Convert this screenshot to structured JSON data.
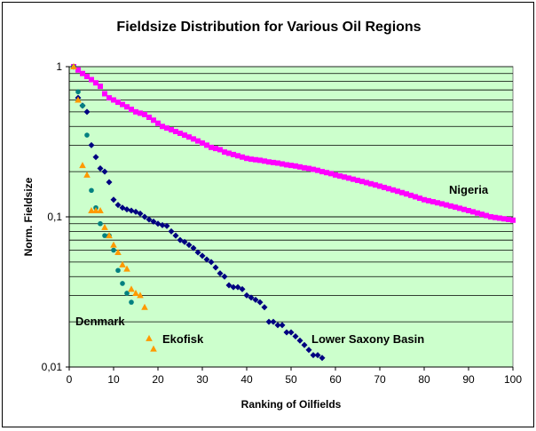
{
  "chart_data": {
    "type": "scatter",
    "title": "Fieldsize Distribution for Various Oil Regions",
    "xlabel": "Ranking of Oilfields",
    "ylabel": "Norm. Fieldsize",
    "xlim": [
      0,
      100
    ],
    "ylim": [
      0.01,
      1
    ],
    "yscale": "log",
    "x_ticks": [
      0,
      10,
      20,
      30,
      40,
      50,
      60,
      70,
      80,
      90,
      100
    ],
    "x_tick_labels": [
      "0",
      "10",
      "20",
      "30",
      "40",
      "50",
      "60",
      "70",
      "80",
      "90",
      "100"
    ],
    "y_ticks": [
      0.01,
      0.1,
      1
    ],
    "y_tick_labels": [
      "0,01",
      "0,1",
      "1"
    ],
    "plot_background": "#ccffcc",
    "grid": true,
    "annotations": [
      "Nigeria",
      "Denmark",
      "Ekofisk",
      "Lower Saxony Basin"
    ],
    "series": [
      {
        "name": "Nigeria",
        "marker": "square",
        "color": "#ff00ff",
        "x": [
          1,
          2,
          3,
          4,
          5,
          6,
          7,
          8,
          9,
          10,
          11,
          12,
          13,
          14,
          15,
          16,
          17,
          18,
          19,
          20,
          21,
          22,
          23,
          24,
          25,
          26,
          27,
          28,
          29,
          30,
          31,
          32,
          33,
          34,
          35,
          36,
          37,
          38,
          39,
          40,
          41,
          42,
          43,
          44,
          45,
          46,
          47,
          48,
          49,
          50,
          51,
          52,
          53,
          54,
          55,
          56,
          57,
          58,
          59,
          60,
          61,
          62,
          63,
          64,
          65,
          66,
          67,
          68,
          69,
          70,
          71,
          72,
          73,
          74,
          75,
          76,
          77,
          78,
          79,
          80,
          81,
          82,
          83,
          84,
          85,
          86,
          87,
          88,
          89,
          90,
          91,
          92,
          93,
          94,
          95,
          96,
          97,
          98,
          99,
          100
        ],
        "y": [
          1.0,
          0.95,
          0.9,
          0.86,
          0.82,
          0.78,
          0.74,
          0.66,
          0.62,
          0.6,
          0.58,
          0.56,
          0.54,
          0.52,
          0.5,
          0.49,
          0.48,
          0.46,
          0.44,
          0.42,
          0.4,
          0.39,
          0.38,
          0.37,
          0.36,
          0.35,
          0.34,
          0.33,
          0.32,
          0.31,
          0.3,
          0.29,
          0.285,
          0.28,
          0.27,
          0.265,
          0.26,
          0.255,
          0.25,
          0.245,
          0.242,
          0.24,
          0.238,
          0.235,
          0.232,
          0.23,
          0.228,
          0.225,
          0.222,
          0.22,
          0.218,
          0.215,
          0.212,
          0.21,
          0.207,
          0.204,
          0.2,
          0.197,
          0.194,
          0.19,
          0.187,
          0.184,
          0.181,
          0.178,
          0.175,
          0.172,
          0.169,
          0.166,
          0.163,
          0.16,
          0.157,
          0.154,
          0.151,
          0.148,
          0.145,
          0.142,
          0.139,
          0.136,
          0.133,
          0.13,
          0.128,
          0.126,
          0.124,
          0.122,
          0.12,
          0.118,
          0.116,
          0.114,
          0.112,
          0.11,
          0.108,
          0.106,
          0.104,
          0.102,
          0.1,
          0.099,
          0.098,
          0.097,
          0.096,
          0.095
        ]
      },
      {
        "name": "Lower Saxony Basin",
        "marker": "diamond",
        "color": "#000080",
        "x": [
          1,
          2,
          3,
          4,
          5,
          6,
          7,
          8,
          9,
          10,
          11,
          12,
          13,
          14,
          15,
          16,
          17,
          18,
          19,
          20,
          21,
          22,
          23,
          24,
          25,
          26,
          27,
          28,
          29,
          30,
          31,
          32,
          33,
          34,
          35,
          36,
          37,
          38,
          39,
          40,
          41,
          42,
          43,
          44,
          45,
          46,
          47,
          48,
          49,
          50,
          51,
          52,
          53,
          54,
          55,
          56,
          57
        ],
        "y": [
          1.0,
          0.62,
          0.55,
          0.5,
          0.3,
          0.25,
          0.21,
          0.2,
          0.17,
          0.13,
          0.12,
          0.115,
          0.112,
          0.11,
          0.108,
          0.105,
          0.1,
          0.096,
          0.093,
          0.09,
          0.088,
          0.087,
          0.08,
          0.075,
          0.07,
          0.068,
          0.065,
          0.062,
          0.058,
          0.055,
          0.052,
          0.05,
          0.046,
          0.042,
          0.04,
          0.035,
          0.034,
          0.034,
          0.033,
          0.03,
          0.029,
          0.028,
          0.027,
          0.025,
          0.02,
          0.02,
          0.019,
          0.019,
          0.017,
          0.017,
          0.016,
          0.015,
          0.014,
          0.013,
          0.012,
          0.012,
          0.0115
        ]
      },
      {
        "name": "Denmark",
        "marker": "circle",
        "color": "#008080",
        "x": [
          1,
          2,
          3,
          4,
          5,
          6,
          7,
          8,
          9,
          10,
          11,
          12,
          13,
          14
        ],
        "y": [
          1.0,
          0.68,
          0.55,
          0.35,
          0.15,
          0.115,
          0.09,
          0.075,
          0.075,
          0.06,
          0.044,
          0.036,
          0.031,
          0.027
        ]
      },
      {
        "name": "Ekofisk",
        "marker": "triangle",
        "color": "#ff9900",
        "x": [
          1,
          2,
          3,
          4,
          5,
          6,
          7,
          8,
          9,
          10,
          11,
          12,
          13,
          14,
          15,
          16,
          17,
          18,
          19
        ],
        "y": [
          1.0,
          0.6,
          0.22,
          0.19,
          0.11,
          0.11,
          0.11,
          0.085,
          0.075,
          0.065,
          0.058,
          0.048,
          0.045,
          0.033,
          0.031,
          0.03,
          0.025,
          0.0155,
          0.0132
        ]
      }
    ]
  }
}
